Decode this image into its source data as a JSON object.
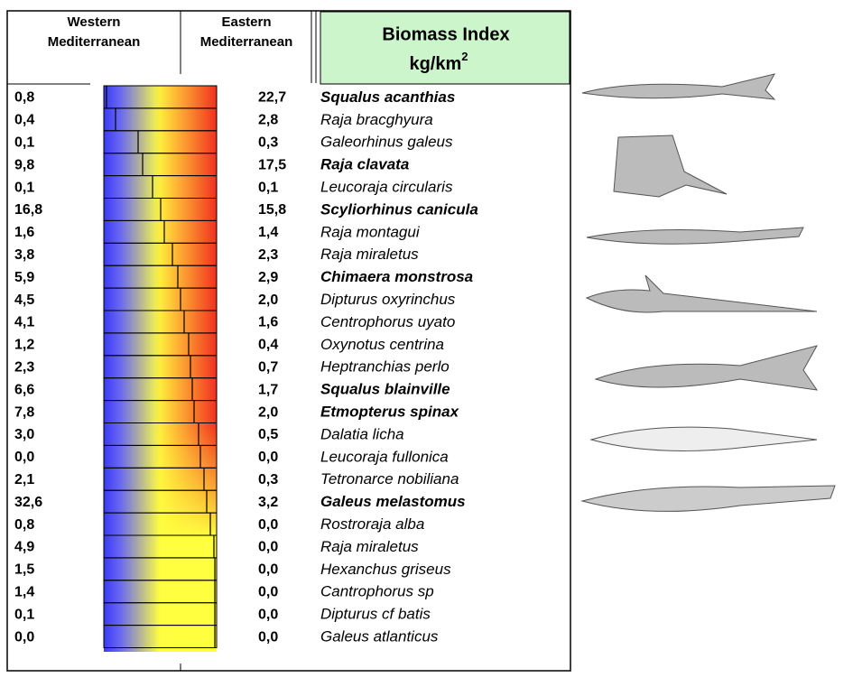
{
  "header": {
    "western": [
      "Western",
      "Mediterranean"
    ],
    "eastern": [
      "Eastern",
      "Mediterranean"
    ],
    "title": "Biomass Index",
    "unit": "kg/km",
    "unit_power": "2"
  },
  "rows": [
    {
      "western": "0,8",
      "eastern": "22,7",
      "species": "Squalus acanthias",
      "bold": true
    },
    {
      "western": "0,4",
      "eastern": "2,8",
      "species": "Raja bracghyura",
      "bold": false
    },
    {
      "western": "0,1",
      "eastern": "0,3",
      "species": "Galeorhinus galeus",
      "bold": false
    },
    {
      "western": "9,8",
      "eastern": "17,5",
      "species": "Raja clavata",
      "bold": true
    },
    {
      "western": "0,1",
      "eastern": "0,1",
      "species": "Leucoraja circularis",
      "bold": false
    },
    {
      "western": "16,8",
      "eastern": "15,8",
      "species": "Scyliorhinus canicula",
      "bold": true
    },
    {
      "western": "1,6",
      "eastern": "1,4",
      "species": "Raja montagui",
      "bold": false
    },
    {
      "western": "3,8",
      "eastern": "2,3",
      "species": "Raja miraletus",
      "bold": false
    },
    {
      "western": "5,9",
      "eastern": "2,9",
      "species": "Chimaera monstrosa",
      "bold": true
    },
    {
      "western": "4,5",
      "eastern": "2,0",
      "species": "Dipturus oxyrinchus",
      "bold": false
    },
    {
      "western": "4,1",
      "eastern": "1,6",
      "species": "Centrophorus uyato",
      "bold": false
    },
    {
      "western": "1,2",
      "eastern": "0,4",
      "species": "Oxynotus centrina",
      "bold": false
    },
    {
      "western": "2,3",
      "eastern": "0,7",
      "species": "Heptranchias perlo",
      "bold": false
    },
    {
      "western": "6,6",
      "eastern": "1,7",
      "species": "Squalus blainville",
      "bold": true
    },
    {
      "western": "7,8",
      "eastern": "2,0",
      "species": "Etmopterus spinax",
      "bold": true
    },
    {
      "western": "3,0",
      "eastern": "0,5",
      "species": "Dalatia licha",
      "bold": false
    },
    {
      "western": "0,0",
      "eastern": "0,0",
      "species": "Leucoraja fullonica",
      "bold": false
    },
    {
      "western": "2,1",
      "eastern": "0,3",
      "species": "Tetronarce nobiliana",
      "bold": false
    },
    {
      "western": "32,6",
      "eastern": "3,2",
      "species": "Galeus melastomus",
      "bold": true
    },
    {
      "western": "0,8",
      "eastern": "0,0",
      "species": "Rostroraja alba",
      "bold": false
    },
    {
      "western": "4,9",
      "eastern": "0,0",
      "species": "Raja miraletus",
      "bold": false
    },
    {
      "western": "1,5",
      "eastern": "0,0",
      "species": "Hexanchus griseus",
      "bold": false
    },
    {
      "western": "1,4",
      "eastern": "0,0",
      "species": "Cantrophorus sp",
      "bold": false
    },
    {
      "western": "0,1",
      "eastern": "0,0",
      "species": "Dipturus cf batis",
      "bold": false
    },
    {
      "western": "0,0",
      "eastern": "0,0",
      "species": "Galeus atlanticus",
      "bold": false
    }
  ]
}
